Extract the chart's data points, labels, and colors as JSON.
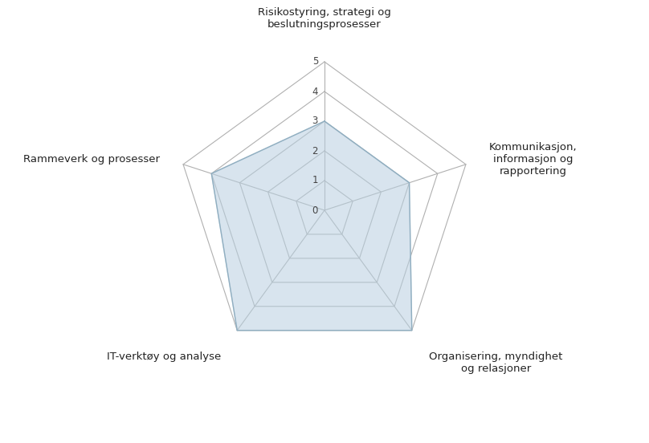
{
  "categories": [
    "Risikostyring, strategi og\nbeslutningsprosesser",
    "Kommunikasjon,\ninformasjon og\nrapportering",
    "Organisering, myndighet\nog relasjoner",
    "IT-verktøy og analyse",
    "Rammeverk og prosesser"
  ],
  "values": [
    3,
    3,
    5,
    5,
    4
  ],
  "max_value": 5,
  "num_levels": 5,
  "fill_color": "#b8cfe0",
  "fill_alpha": 0.55,
  "grid_color": "#b0b0b0",
  "fill_edge_color": "#90aec0",
  "background_color": "#ffffff",
  "label_fontsize": 9.5,
  "tick_fontsize": 8.5,
  "figsize": [
    8.08,
    5.52
  ],
  "dpi": 100
}
